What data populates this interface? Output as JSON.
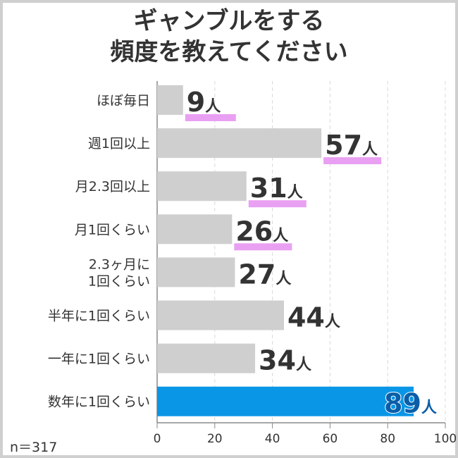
{
  "chart_data": {
    "type": "bar",
    "orientation": "horizontal",
    "title": [
      "ギャンブルをする",
      "頻度を教えてください"
    ],
    "categories": [
      "ほぼ毎日",
      "週1回以上",
      "月2.3回以上",
      "月1回くらい",
      "2.3ヶ月に\n1回くらい",
      "半年に1回くらい",
      "一年に1回くらい",
      "数年に1回くらい"
    ],
    "values": [
      9,
      57,
      31,
      26,
      27,
      44,
      34,
      89
    ],
    "unit": "人",
    "highlighted_underline": [
      true,
      true,
      true,
      true,
      false,
      false,
      false,
      false
    ],
    "highlight_index": 7,
    "xlim": [
      0,
      100
    ],
    "xticks": [
      0,
      20,
      40,
      60,
      80,
      100
    ],
    "grid": true,
    "sample_size": "n＝317",
    "colors": {
      "bar": "#cfcfcf",
      "highlight": "#0a96e6",
      "underline": "#e9a0f2",
      "label_highlight": "#0a5ea8",
      "text": "#333333"
    }
  }
}
